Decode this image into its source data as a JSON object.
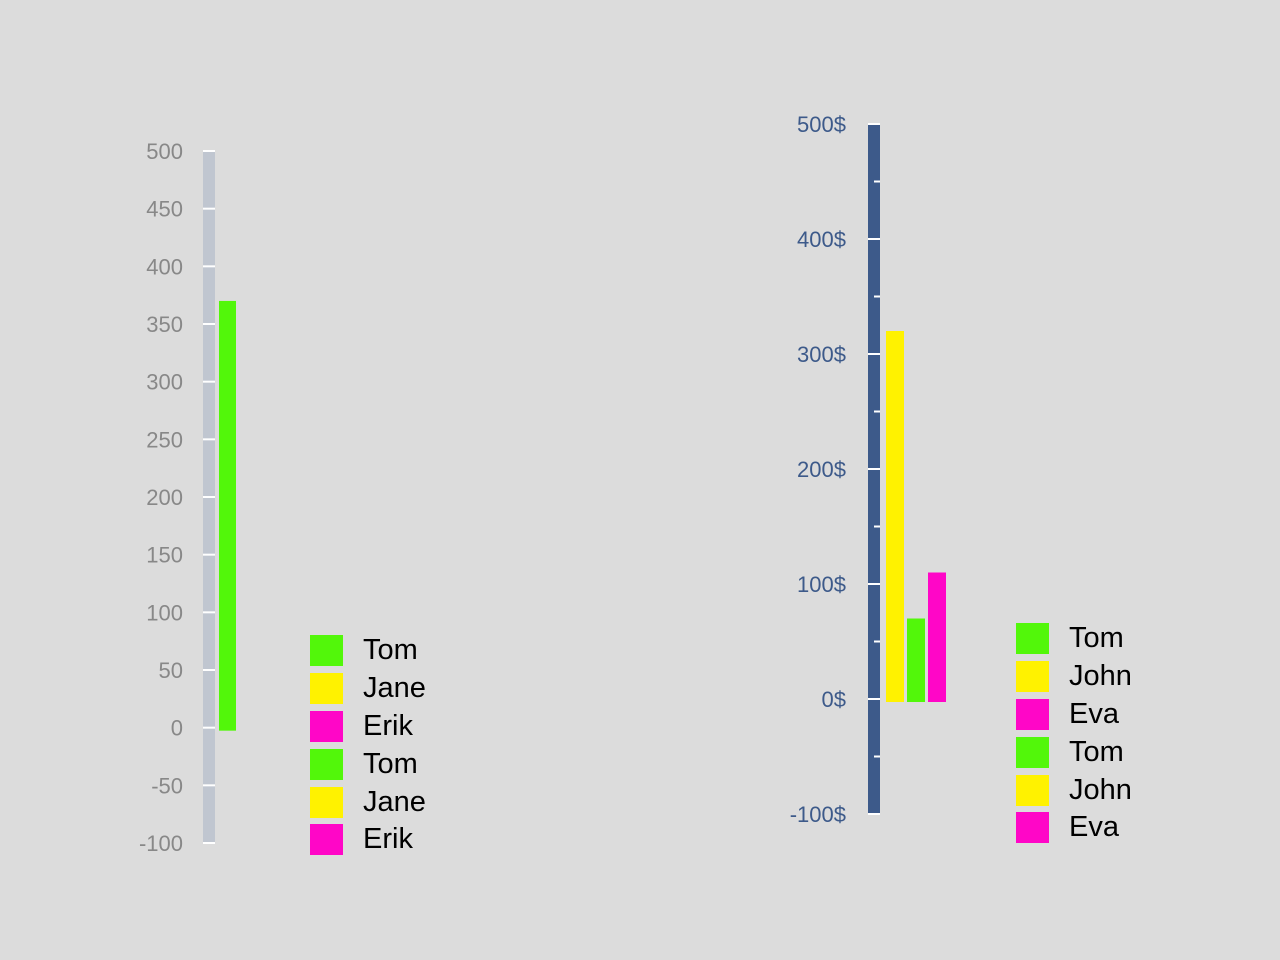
{
  "chart_data": [
    {
      "type": "bar",
      "ylim": [
        -100,
        500
      ],
      "tick_labels": [
        "-100",
        "-50",
        "0",
        "50",
        "100",
        "150",
        "200",
        "250",
        "300",
        "350",
        "400",
        "450",
        "500"
      ],
      "tick_values": [
        -100,
        -50,
        0,
        50,
        100,
        150,
        200,
        250,
        300,
        350,
        400,
        450,
        500
      ],
      "series": [
        {
          "values": [
            370,
            0,
            0
          ],
          "color": "#52f70a"
        }
      ],
      "legend": [
        {
          "label": "Tom",
          "color": "#52f70a"
        },
        {
          "label": "Jane",
          "color": "#fff200"
        },
        {
          "label": "Erik",
          "color": "#ff06c7"
        },
        {
          "label": "Tom",
          "color": "#52f70a"
        },
        {
          "label": "Jane",
          "color": "#fff200"
        },
        {
          "label": "Erik",
          "color": "#ff06c7"
        }
      ],
      "legend_placement": "bottom-right",
      "axis_color": "#c0c6d0",
      "tick_label_color": "#888888"
    },
    {
      "type": "bar",
      "ylim": [
        -100,
        500
      ],
      "tick_labels": [
        "-100$",
        "0$",
        "100$",
        "200$",
        "300$",
        "400$",
        "500$"
      ],
      "tick_values": [
        -100,
        0,
        100,
        200,
        300,
        400,
        500
      ],
      "minor_tick_values": [
        -50,
        50,
        150,
        250,
        350,
        450
      ],
      "series": [
        {
          "values": [
            320
          ],
          "color": "#fff200"
        },
        {
          "values": [
            70
          ],
          "color": "#52f70a"
        },
        {
          "values": [
            110
          ],
          "color": "#ff06c7"
        }
      ],
      "legend": [
        {
          "label": "Tom",
          "color": "#52f70a"
        },
        {
          "label": "John",
          "color": "#fff200"
        },
        {
          "label": "Eva",
          "color": "#ff06c7"
        },
        {
          "label": "Tom",
          "color": "#52f70a"
        },
        {
          "label": "John",
          "color": "#fff200"
        },
        {
          "label": "Eva",
          "color": "#ff06c7"
        }
      ],
      "legend_placement": "bottom-right",
      "axis_color": "#3d5a8a",
      "tick_label_color": "#3d5a8a"
    }
  ]
}
